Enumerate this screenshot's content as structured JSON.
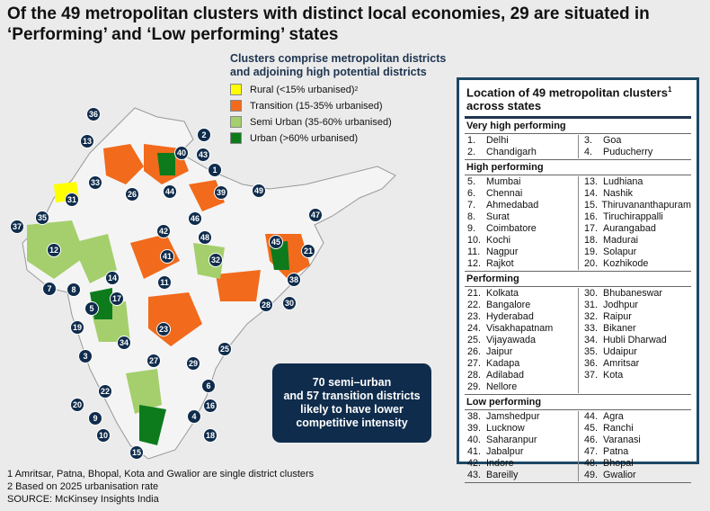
{
  "title": "Of the 49 metropolitan clusters with distinct local economies, 29 are situated in ‘Performing’ and ‘Low performing’ states",
  "legend": {
    "title": "Clusters comprise metropolitan districts and adjoining high potential districts",
    "items": [
      {
        "label": "Rural (<15% urbanised)",
        "sup": "2",
        "color": "#ffff00"
      },
      {
        "label": "Transition (15-35% urbanised)",
        "color": "#f26a1b"
      },
      {
        "label": "Semi Urban (35-60% urbanised)",
        "color": "#a4cf6c"
      },
      {
        "label": "Urban (>60% urbanised)",
        "color": "#0d7a1c"
      }
    ]
  },
  "callout": [
    "70 semi–urban",
    "and 57 transition districts",
    "likely to have lower",
    "competitive intensity"
  ],
  "table": {
    "title": "Location of 49 metropolitan clusters",
    "title_sup": "1",
    "title2": "across states",
    "sections": [
      {
        "name": "Very high performing",
        "left": [
          [
            "1.",
            "Delhi"
          ],
          [
            "2.",
            "Chandigarh"
          ]
        ],
        "right": [
          [
            "3.",
            "Goa"
          ],
          [
            "4.",
            "Puducherry"
          ]
        ]
      },
      {
        "name": "High performing",
        "left": [
          [
            "5.",
            "Mumbai"
          ],
          [
            "6.",
            "Chennai"
          ],
          [
            "7.",
            "Ahmedabad"
          ],
          [
            "8.",
            "Surat"
          ],
          [
            "9.",
            "Coimbatore"
          ],
          [
            "10.",
            "Kochi"
          ],
          [
            "11.",
            "Nagpur"
          ],
          [
            "12.",
            "Rajkot"
          ]
        ],
        "right": [
          [
            "13.",
            "Ludhiana"
          ],
          [
            "14.",
            "Nashik"
          ],
          [
            "15.",
            "Thiruvananthapuram"
          ],
          [
            "16.",
            "Tiruchirappalli"
          ],
          [
            "17.",
            "Aurangabad"
          ],
          [
            "18.",
            "Madurai"
          ],
          [
            "19.",
            "Solapur"
          ],
          [
            "20.",
            "Kozhikode"
          ]
        ]
      },
      {
        "name": "Performing",
        "left": [
          [
            "21.",
            "Kolkata"
          ],
          [
            "22.",
            "Bangalore"
          ],
          [
            "23.",
            "Hyderabad"
          ],
          [
            "24.",
            "Visakhapatnam"
          ],
          [
            "25.",
            "Vijayawada"
          ],
          [
            "26.",
            "Jaipur"
          ],
          [
            "27.",
            "Kadapa"
          ],
          [
            "28.",
            "Adilabad"
          ],
          [
            "29.",
            "Nellore"
          ]
        ],
        "right": [
          [
            "30.",
            "Bhubaneswar"
          ],
          [
            "31.",
            "Jodhpur"
          ],
          [
            "32.",
            "Raipur"
          ],
          [
            "33.",
            "Bikaner"
          ],
          [
            "34.",
            "Hubli Dharwad"
          ],
          [
            "35.",
            "Udaipur"
          ],
          [
            "36.",
            "Amritsar"
          ],
          [
            "37.",
            "Kota"
          ]
        ]
      },
      {
        "name": "Low performing",
        "left": [
          [
            "38.",
            "Jamshedpur"
          ],
          [
            "39.",
            "Lucknow"
          ],
          [
            "40.",
            "Saharanpur"
          ],
          [
            "41.",
            "Jabalpur"
          ],
          [
            "42.",
            "Indore"
          ],
          [
            "43.",
            "Bareilly"
          ]
        ],
        "right": [
          [
            "44.",
            "Agra"
          ],
          [
            "45.",
            "Ranchi"
          ],
          [
            "46.",
            "Varanasi"
          ],
          [
            "47.",
            "Patna"
          ],
          [
            "48.",
            "Bhopal"
          ],
          [
            "49.",
            "Gwalior"
          ]
        ]
      }
    ]
  },
  "markers": [
    "36",
    "2",
    "13",
    "40",
    "43",
    "1",
    "33",
    "49",
    "39",
    "31",
    "46",
    "47",
    "35",
    "37",
    "42",
    "48",
    "45",
    "21",
    "12",
    "41",
    "32",
    "14",
    "38",
    "7",
    "8",
    "11",
    "30",
    "28",
    "17",
    "5",
    "19",
    "23",
    "3",
    "34",
    "25",
    "27",
    "29",
    "26",
    "44",
    "6",
    "22",
    "16",
    "20",
    "4",
    "9",
    "10",
    "18",
    "15"
  ],
  "footnotes": [
    "1 Amritsar, Patna, Bhopal, Kota and Gwalior are single district clusters",
    "2 Based on 2025 urbanisation rate",
    "SOURCE: McKinsey Insights India"
  ]
}
